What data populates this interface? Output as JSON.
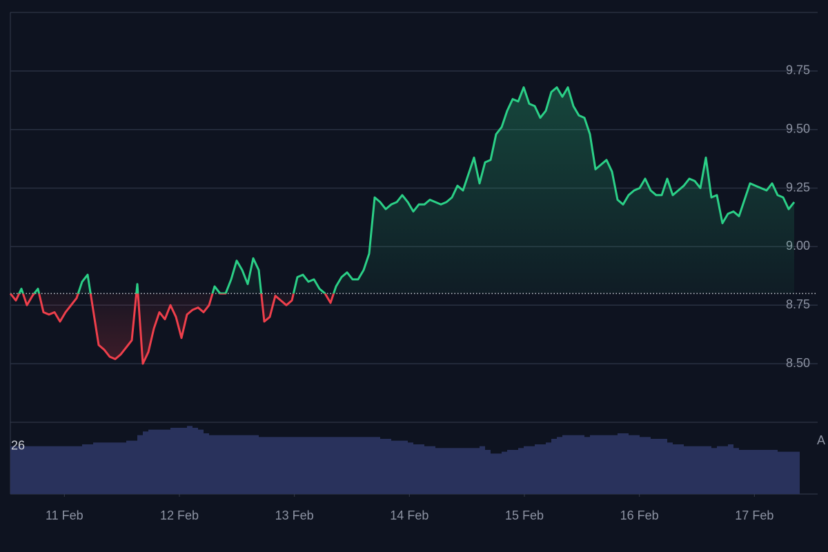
{
  "chart_data": {
    "type": "baseline",
    "baseline": 8.8,
    "up_color": "#2bd087",
    "down_color": "#ef3f4b",
    "volume_color": "#29325c",
    "xlim": [
      10.53,
      17.55
    ],
    "xticks": [
      {
        "value": 11,
        "label": "11 Feb"
      },
      {
        "value": 12,
        "label": "12 Feb"
      },
      {
        "value": 13,
        "label": "13 Feb"
      },
      {
        "value": 14,
        "label": "14 Feb"
      },
      {
        "value": 15,
        "label": "15 Feb"
      },
      {
        "value": 16,
        "label": "16 Feb"
      },
      {
        "value": 17,
        "label": "17 Feb"
      }
    ],
    "ylim": [
      8.25,
      10.0
    ],
    "yticks": [
      {
        "value": 8.5,
        "label": "8.50"
      },
      {
        "value": 8.75,
        "label": "8.75"
      },
      {
        "value": 9.0,
        "label": "9.00"
      },
      {
        "value": 9.25,
        "label": "9.25"
      },
      {
        "value": 9.5,
        "label": "9.50"
      },
      {
        "value": 9.75,
        "label": "9.75"
      }
    ],
    "grid": true,
    "volume_lim": [
      0,
      39
    ],
    "volume_ticks": [
      26
    ],
    "annotation": "A",
    "x": [
      10.53,
      10.578,
      10.626,
      10.674,
      10.722,
      10.77,
      10.818,
      10.866,
      10.914,
      10.962,
      11.01,
      11.058,
      11.106,
      11.154,
      11.202,
      11.25,
      11.298,
      11.346,
      11.394,
      11.442,
      11.49,
      11.538,
      11.586,
      11.634,
      11.682,
      11.73,
      11.778,
      11.826,
      11.874,
      11.922,
      11.97,
      12.018,
      12.066,
      12.114,
      12.162,
      12.21,
      12.258,
      12.306,
      12.354,
      12.402,
      12.45,
      12.498,
      12.546,
      12.594,
      12.642,
      12.69,
      12.738,
      12.786,
      12.834,
      12.882,
      12.93,
      12.978,
      13.026,
      13.074,
      13.122,
      13.17,
      13.218,
      13.266,
      13.314,
      13.362,
      13.41,
      13.458,
      13.506,
      13.554,
      13.602,
      13.65,
      13.698,
      13.746,
      13.794,
      13.842,
      13.89,
      13.938,
      13.986,
      14.034,
      14.082,
      14.13,
      14.178,
      14.226,
      14.274,
      14.322,
      14.37,
      14.418,
      14.466,
      14.514,
      14.562,
      14.61,
      14.658,
      14.706,
      14.754,
      14.802,
      14.85,
      14.898,
      14.946,
      14.994,
      15.042,
      15.09,
      15.138,
      15.186,
      15.234,
      15.282,
      15.33,
      15.378,
      15.426,
      15.474,
      15.522,
      15.57,
      15.618,
      15.666,
      15.714,
      15.762,
      15.81,
      15.858,
      15.906,
      15.954,
      16.002,
      16.05,
      16.098,
      16.146,
      16.194,
      16.242,
      16.29,
      16.338,
      16.386,
      16.434,
      16.482,
      16.53,
      16.578,
      16.626,
      16.674,
      16.722,
      16.77,
      16.818,
      16.866,
      16.914,
      16.962,
      17.01,
      17.058,
      17.106,
      17.154,
      17.202,
      17.25,
      17.298,
      17.346
    ],
    "values": [
      8.8,
      8.77,
      8.82,
      8.75,
      8.79,
      8.82,
      8.72,
      8.71,
      8.72,
      8.68,
      8.72,
      8.75,
      8.78,
      8.85,
      8.88,
      8.73,
      8.58,
      8.56,
      8.53,
      8.52,
      8.54,
      8.57,
      8.6,
      8.84,
      8.5,
      8.55,
      8.65,
      8.72,
      8.69,
      8.75,
      8.7,
      8.61,
      8.71,
      8.73,
      8.74,
      8.72,
      8.75,
      8.83,
      8.8,
      8.8,
      8.86,
      8.94,
      8.9,
      8.84,
      8.95,
      8.9,
      8.68,
      8.7,
      8.79,
      8.77,
      8.75,
      8.77,
      8.87,
      8.88,
      8.85,
      8.86,
      8.82,
      8.8,
      8.76,
      8.83,
      8.87,
      8.89,
      8.86,
      8.86,
      8.9,
      8.97,
      9.21,
      9.19,
      9.16,
      9.18,
      9.19,
      9.22,
      9.19,
      9.15,
      9.18,
      9.18,
      9.2,
      9.19,
      9.18,
      9.19,
      9.21,
      9.26,
      9.24,
      9.31,
      9.38,
      9.27,
      9.36,
      9.37,
      9.48,
      9.51,
      9.58,
      9.63,
      9.62,
      9.68,
      9.61,
      9.6,
      9.55,
      9.58,
      9.66,
      9.68,
      9.64,
      9.68,
      9.6,
      9.56,
      9.55,
      9.48,
      9.33,
      9.35,
      9.37,
      9.32,
      9.2,
      9.18,
      9.22,
      9.24,
      9.25,
      9.29,
      9.24,
      9.22,
      9.22,
      9.29,
      9.22,
      9.24,
      9.26,
      9.29,
      9.28,
      9.25,
      9.38,
      9.21,
      9.22,
      9.1,
      9.14,
      9.15,
      9.13,
      9.2,
      9.27,
      9.26,
      9.25,
      9.24,
      9.27,
      9.22,
      9.21,
      9.16,
      9.19
    ],
    "volume": [
      26,
      26,
      26,
      26,
      26,
      26,
      26,
      26,
      26,
      26,
      26,
      26,
      26,
      27,
      27,
      28,
      28,
      28,
      28,
      28,
      28,
      29,
      29,
      32,
      34,
      35,
      35,
      35,
      35,
      36,
      36,
      36,
      37,
      36,
      35,
      33,
      32,
      32,
      32,
      32,
      32,
      32,
      32,
      32,
      32,
      31,
      31,
      31,
      31,
      31,
      31,
      31,
      31,
      31,
      31,
      31,
      31,
      31,
      31,
      31,
      31,
      31,
      31,
      31,
      31,
      31,
      31,
      30,
      30,
      29,
      29,
      29,
      28,
      27,
      27,
      26,
      26,
      25,
      25,
      25,
      25,
      25,
      25,
      25,
      25,
      26,
      24,
      22,
      22,
      23,
      24,
      24,
      25,
      26,
      26,
      27,
      27,
      28,
      30,
      31,
      32,
      32,
      32,
      32,
      31,
      32,
      32,
      32,
      32,
      32,
      33,
      33,
      32,
      32,
      31,
      31,
      30,
      30,
      30,
      28,
      27,
      27,
      26,
      26,
      26,
      26,
      26,
      25,
      26,
      26,
      27,
      25,
      24,
      24,
      24,
      24,
      24,
      24,
      24,
      23,
      23,
      23,
      23
    ]
  }
}
